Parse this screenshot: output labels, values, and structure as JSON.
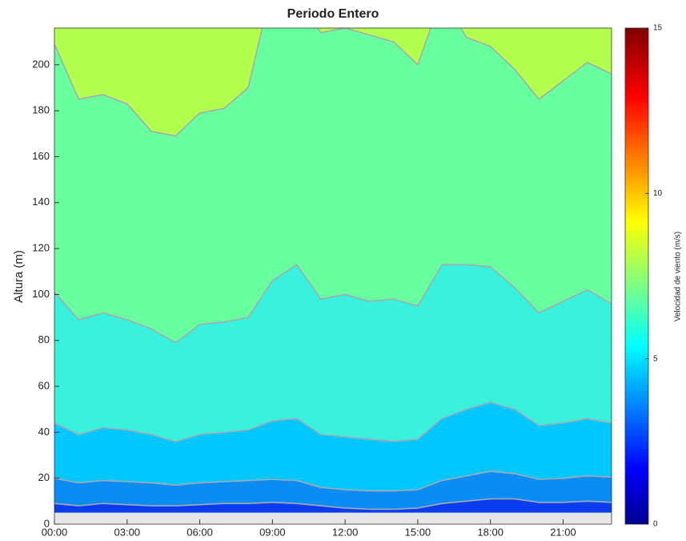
{
  "chart_data": {
    "type": "filled-contour",
    "title": "Periodo Entero",
    "y_label": "Altura (m)",
    "x": [
      0,
      1,
      2,
      3,
      4,
      5,
      6,
      7,
      8,
      9,
      10,
      11,
      12,
      13,
      14,
      15,
      16,
      17,
      18,
      19,
      20,
      21,
      22,
      23
    ],
    "xlim": [
      0,
      23
    ],
    "xticks": [
      {
        "value": 0,
        "label": "00:00"
      },
      {
        "value": 3,
        "label": "03:00"
      },
      {
        "value": 6,
        "label": "06:00"
      },
      {
        "value": 9,
        "label": "09:00"
      },
      {
        "value": 12,
        "label": "12:00"
      },
      {
        "value": 15,
        "label": "15:00"
      },
      {
        "value": 18,
        "label": "18:00"
      },
      {
        "value": 21,
        "label": "21:00"
      }
    ],
    "ylim": [
      0,
      216
    ],
    "yticks": [
      0,
      20,
      40,
      60,
      80,
      100,
      120,
      140,
      160,
      180,
      200
    ],
    "data_floor": 5,
    "top_color": "#b2ff4e",
    "contours": [
      {
        "color": "#0a3cf0",
        "values": [
          9,
          8,
          9,
          8.5,
          8,
          8,
          8.5,
          9,
          9,
          9.5,
          9,
          8,
          7,
          6.5,
          6.5,
          7,
          9,
          10,
          11,
          11,
          9.5,
          9.5,
          10,
          9.5
        ]
      },
      {
        "color": "#0a8cf5",
        "values": [
          20,
          18,
          19,
          18.5,
          18,
          17,
          18,
          18.5,
          19,
          19.5,
          19,
          16,
          15,
          14.5,
          14.5,
          15,
          19,
          21,
          23,
          22,
          19.5,
          20,
          21,
          20.5
        ]
      },
      {
        "color": "#00c8ff",
        "values": [
          44,
          39,
          42,
          41,
          39,
          36,
          39,
          40,
          41,
          45,
          46,
          39,
          38,
          37,
          36,
          37,
          46,
          50,
          53,
          50,
          43,
          44,
          46,
          44
        ]
      },
      {
        "color": "#38f2de",
        "values": [
          101,
          89,
          92,
          89,
          85,
          79,
          87,
          88,
          90,
          106,
          113,
          98,
          100,
          97,
          98,
          95,
          113,
          113,
          112,
          103,
          92,
          97,
          102,
          96
        ]
      },
      {
        "color": "#68ff9e",
        "values": [
          209,
          185,
          187,
          183,
          171,
          169,
          179,
          181,
          190,
          235,
          230,
          214,
          216,
          213,
          210,
          200,
          230,
          212,
          208,
          198,
          185,
          193,
          201,
          196
        ]
      }
    ],
    "colorbar": {
      "label": "Velocidad de viento (m/s)",
      "lim": [
        0,
        15
      ],
      "ticks": [
        0,
        5,
        10,
        15
      ],
      "colormap": "jet"
    }
  }
}
